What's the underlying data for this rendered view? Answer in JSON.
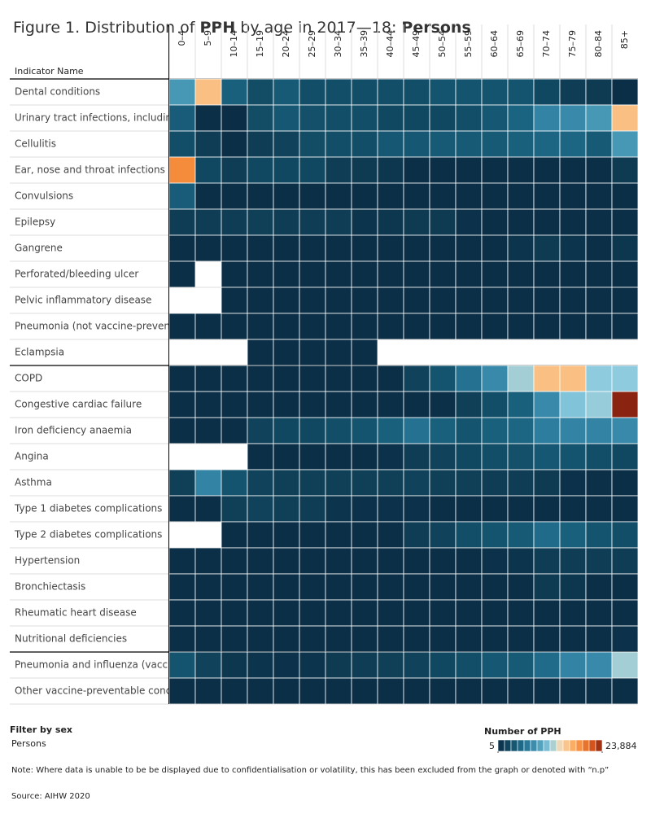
{
  "chart_data": {
    "type": "heatmap",
    "title": [
      "Figure 1. Distribution of ",
      "PPH",
      " by age in 2017—18: ",
      "Persons"
    ],
    "y_header": "Indicator Name",
    "x": [
      "0–4",
      "5–9",
      "10–14",
      "15–19",
      "20–24",
      "25–29",
      "30–34",
      "35–39",
      "40–44",
      "45–49",
      "50–54",
      "55–59",
      "60–64",
      "65–69",
      "70–74",
      "75–79",
      "80–84",
      "85+"
    ],
    "y_groups": [
      [
        "Dental conditions",
        "Urinary tract infections, includin..",
        "Cellulitis",
        "Ear, nose and throat infections",
        "Convulsions",
        "Epilepsy",
        "Gangrene",
        "Perforated/bleeding ulcer",
        "Pelvic inflammatory disease",
        "Pneumonia (not vaccine-prevent..",
        "Eclampsia"
      ],
      [
        "COPD",
        "Congestive cardiac failure",
        "Iron deficiency anaemia",
        "Angina",
        "Asthma",
        "Type 1 diabetes complications",
        "Type 2 diabetes complications",
        "Hypertension",
        "Bronchiectasis",
        "Rheumatic heart disease",
        "Nutritional deficiencies"
      ],
      [
        "Pneumonia and influenza (vacci..",
        "Other vaccine-preventable condi.."
      ]
    ],
    "values": [
      [
        9000,
        16000,
        4500,
        2800,
        4000,
        3000,
        3000,
        3000,
        3000,
        3000,
        3500,
        3500,
        3500,
        3500,
        2500,
        1500,
        1200,
        300
      ],
      [
        4200,
        300,
        200,
        2800,
        3800,
        3200,
        3000,
        3000,
        2500,
        2500,
        2500,
        3000,
        3800,
        4800,
        7500,
        8000,
        9000,
        16000
      ],
      [
        3000,
        1500,
        300,
        1500,
        2000,
        2800,
        3000,
        3000,
        3800,
        3800,
        4000,
        4000,
        4000,
        4500,
        5000,
        5000,
        4000,
        9000
      ],
      [
        19000,
        2500,
        1500,
        2500,
        2500,
        2500,
        1500,
        1200,
        1000,
        300,
        300,
        300,
        300,
        300,
        300,
        300,
        300,
        1200
      ],
      [
        4200,
        300,
        300,
        300,
        300,
        300,
        300,
        300,
        300,
        300,
        300,
        300,
        300,
        300,
        300,
        300,
        300,
        300
      ],
      [
        1500,
        1500,
        1500,
        1800,
        1500,
        1500,
        1500,
        800,
        1000,
        1200,
        1200,
        500,
        300,
        300,
        300,
        300,
        300,
        300
      ],
      [
        300,
        300,
        300,
        300,
        300,
        300,
        300,
        300,
        300,
        300,
        300,
        300,
        300,
        800,
        1200,
        800,
        300,
        1000
      ],
      [
        300,
        null,
        300,
        300,
        300,
        300,
        300,
        300,
        300,
        300,
        300,
        300,
        300,
        300,
        300,
        300,
        300,
        300
      ],
      [
        null,
        null,
        300,
        300,
        300,
        300,
        300,
        300,
        300,
        300,
        300,
        300,
        300,
        300,
        300,
        300,
        300,
        300
      ],
      [
        300,
        300,
        300,
        300,
        300,
        300,
        300,
        300,
        300,
        300,
        300,
        300,
        300,
        300,
        300,
        300,
        300,
        300
      ],
      [
        null,
        null,
        null,
        300,
        300,
        300,
        300,
        300,
        null,
        null,
        null,
        null,
        null,
        null,
        null,
        null,
        null,
        null
      ],
      [
        300,
        300,
        300,
        300,
        300,
        300,
        300,
        300,
        300,
        2000,
        3500,
        6000,
        8000,
        12500,
        16000,
        16000,
        12000,
        12000
      ],
      [
        300,
        300,
        300,
        300,
        300,
        300,
        300,
        300,
        300,
        300,
        400,
        1800,
        3000,
        4500,
        8000,
        11500,
        12200,
        23884
      ],
      [
        300,
        300,
        300,
        2000,
        2500,
        2500,
        3000,
        3500,
        4500,
        6000,
        4500,
        3500,
        4500,
        5000,
        7000,
        7500,
        7500,
        8000
      ],
      [
        null,
        null,
        null,
        300,
        300,
        300,
        300,
        300,
        500,
        1500,
        2000,
        2500,
        3000,
        3200,
        3800,
        3500,
        3000,
        2500
      ],
      [
        1800,
        7500,
        3500,
        2000,
        1800,
        1800,
        1800,
        1800,
        1800,
        2000,
        1800,
        1800,
        1500,
        1500,
        1200,
        500,
        400,
        300
      ],
      [
        300,
        300,
        1800,
        2000,
        1800,
        1500,
        800,
        500,
        500,
        500,
        300,
        300,
        300,
        300,
        300,
        300,
        300,
        300
      ],
      [
        null,
        null,
        300,
        300,
        300,
        300,
        300,
        300,
        300,
        1500,
        2000,
        3000,
        3500,
        4000,
        5500,
        4500,
        3500,
        3000
      ],
      [
        300,
        300,
        300,
        300,
        300,
        300,
        300,
        300,
        300,
        300,
        300,
        300,
        500,
        800,
        1500,
        1500,
        1500,
        1500
      ],
      [
        300,
        300,
        300,
        300,
        300,
        300,
        300,
        300,
        300,
        300,
        300,
        300,
        300,
        300,
        1200,
        1000,
        300,
        300
      ],
      [
        300,
        300,
        300,
        300,
        300,
        300,
        300,
        300,
        300,
        300,
        300,
        300,
        300,
        300,
        300,
        300,
        300,
        300
      ],
      [
        300,
        300,
        300,
        300,
        300,
        300,
        300,
        300,
        300,
        300,
        300,
        300,
        300,
        300,
        300,
        300,
        300,
        500
      ],
      [
        3500,
        2000,
        1000,
        800,
        500,
        800,
        1200,
        1500,
        1800,
        2000,
        2500,
        3000,
        3800,
        4000,
        5500,
        7500,
        8000,
        12500
      ],
      [
        300,
        300,
        300,
        300,
        300,
        300,
        300,
        300,
        300,
        300,
        300,
        300,
        300,
        300,
        300,
        300,
        300,
        300
      ]
    ],
    "colors": [
      "#0a2c44",
      "#11475f",
      "#1a6381",
      "#2d7fa0",
      "#4f9fbc",
      "#8ccbe0",
      "#f3d9b4",
      "#fdb56e",
      "#f58a3a",
      "#d8561c",
      "#8a2410"
    ],
    "legend_title": "Number of PPH",
    "clim": [
      5,
      23884
    ],
    "cticks": [
      5,
      {
        "value": 23884,
        "label": "23,884"
      }
    ],
    "filter_label": "Filter by sex",
    "filter_value": "Persons",
    "note": "Note: Where data is unable to be be displayed due to confidentialisation or volatility, this has been excluded from the graph or denoted with “n.p”",
    "source": "Source: AIHW 2020"
  }
}
